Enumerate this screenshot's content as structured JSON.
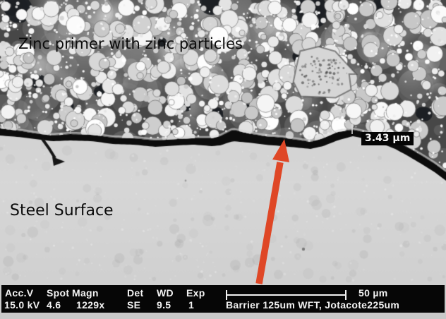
{
  "annotations": {
    "zinc_label": "Zinc primer with zinc particles",
    "steel_label": "Steel Surface",
    "gap_measurement": "3.43 µm"
  },
  "info_bar": {
    "columns": [
      {
        "header": "Acc.V",
        "value": "15.0 kV"
      },
      {
        "header": "Spot",
        "value": "4.6"
      },
      {
        "header": "Magn",
        "value": "1229x"
      },
      {
        "header": "Det",
        "value": "SE"
      },
      {
        "header": "WD",
        "value": "9.5"
      },
      {
        "header": "Exp",
        "value": "1"
      }
    ],
    "scale_label": "50 µm",
    "sample_label": "Barrier 125um WFT, Jotacote225um"
  },
  "colors": {
    "arrow": "#df4726",
    "bar_background": "#060606",
    "bar_text": "#f2f2f2",
    "steel_gray": "#d4d4d4",
    "frame_gray": "#c9c9c9",
    "measure_tick": "#dddddd"
  }
}
